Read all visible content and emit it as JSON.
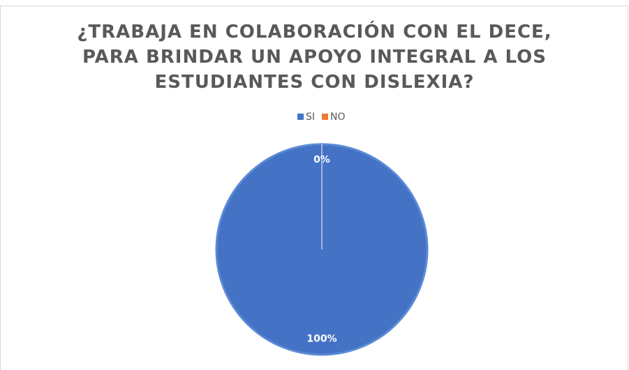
{
  "chart_data": {
    "type": "pie",
    "title": "¿TRABAJA EN COLABORACIÓN CON EL DECE, PARA BRINDAR UN APOYO INTEGRAL A LOS ESTUDIANTES CON DISLEXIA?",
    "categories": [
      "SI",
      "NO"
    ],
    "values": [
      100,
      0
    ],
    "value_labels": [
      "100%",
      "0%"
    ],
    "colors": [
      "#4472c4",
      "#ed7d31"
    ],
    "legend": "top"
  }
}
